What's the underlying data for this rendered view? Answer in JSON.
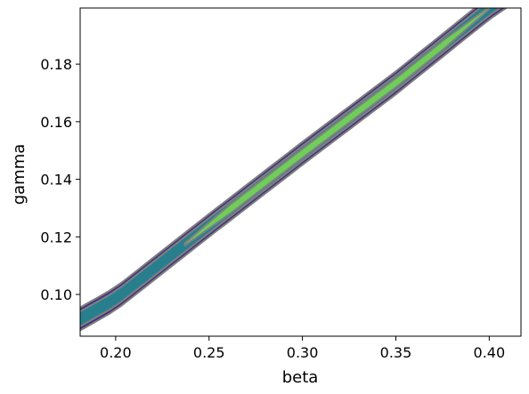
{
  "chart_data": {
    "type": "contour",
    "title": "",
    "xlabel": "beta",
    "ylabel": "gamma",
    "xlim": [
      0.181,
      0.417
    ],
    "ylim": [
      0.0855,
      0.1995
    ],
    "xticks": [
      "0.20",
      "0.25",
      "0.30",
      "0.35",
      "0.40"
    ],
    "yticks": [
      "0.10",
      "0.12",
      "0.14",
      "0.16",
      "0.18"
    ],
    "grid": false,
    "colormap": "viridis",
    "contour_line_color": "#808080",
    "ridge": {
      "beta": [
        0.181,
        0.2,
        0.25,
        0.3,
        0.35,
        0.4,
        0.417
      ],
      "gamma": [
        0.0915,
        0.0985,
        0.124,
        0.149,
        0.1735,
        0.1995,
        0.207
      ]
    },
    "levels": [
      {
        "name": "outer",
        "color": "#46337e",
        "half_width_gamma": 0.004
      },
      {
        "name": "middle",
        "color": "#277f8e",
        "half_width_gamma": 0.0026
      },
      {
        "name": "peak",
        "color": "#6ece58",
        "half_width_gamma": 0.0016,
        "beta_range": [
          0.237,
          0.4
        ]
      }
    ]
  }
}
